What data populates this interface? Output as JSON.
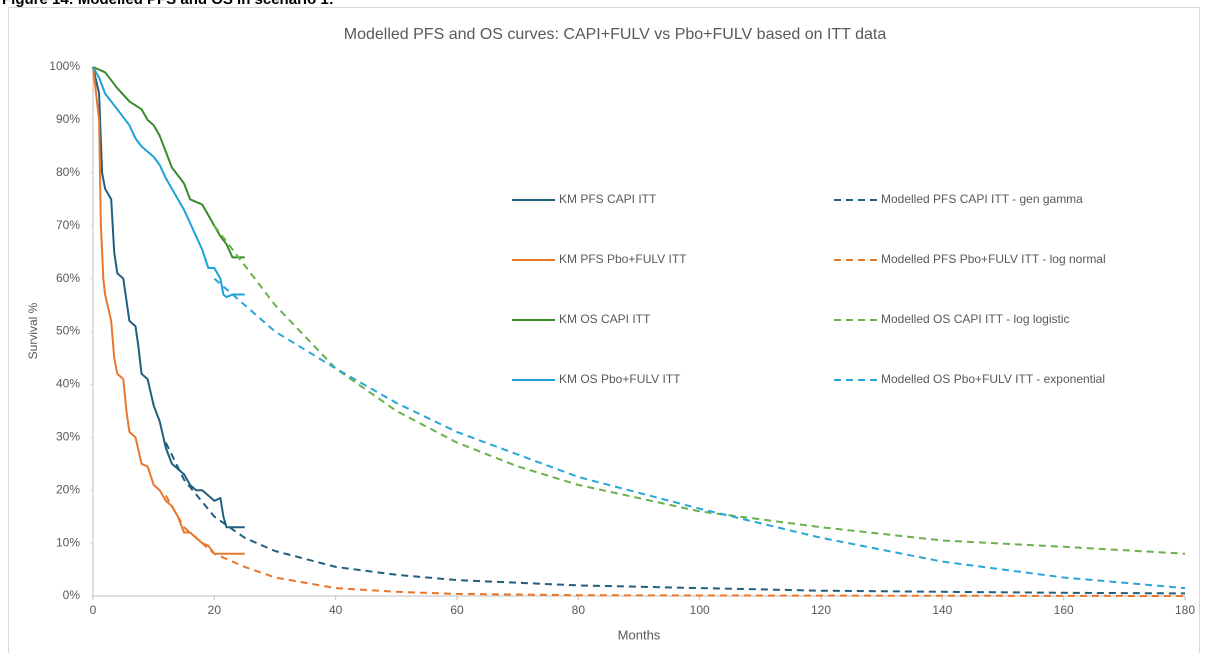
{
  "caption": "Figure 14: Modelled PFS and OS in scenario 1:",
  "chart_data": {
    "type": "line",
    "title": "Modelled PFS and OS curves: CAPI+FULV vs Pbo+FULV based on ITT data",
    "x_label": "Months",
    "y_label": "Survival %",
    "xlim": [
      0,
      180
    ],
    "xticks": [
      0,
      20,
      40,
      60,
      80,
      100,
      120,
      140,
      160,
      180
    ],
    "ylim": [
      0,
      100
    ],
    "yticks": [
      {
        "value": 0,
        "label": "0%"
      },
      {
        "value": 10,
        "label": "10%"
      },
      {
        "value": 20,
        "label": "20%"
      },
      {
        "value": 30,
        "label": "30%"
      },
      {
        "value": 40,
        "label": "40%"
      },
      {
        "value": 50,
        "label": "50%"
      },
      {
        "value": 60,
        "label": "60%"
      },
      {
        "value": 70,
        "label": "70%"
      },
      {
        "value": 80,
        "label": "80%"
      },
      {
        "value": 90,
        "label": "90%"
      },
      {
        "value": 100,
        "label": "100%"
      }
    ],
    "grid": false,
    "legend": "center-right",
    "series": [
      {
        "name": "KM PFS CAPI ITT",
        "color": "#215f7e",
        "line_style": "solid",
        "x": [
          0,
          1,
          1.5,
          2,
          3,
          3.5,
          4,
          5,
          6,
          7,
          7.5,
          8,
          9,
          10,
          11,
          12,
          13,
          14,
          15,
          16,
          17,
          18,
          19,
          20,
          21,
          21.5,
          22,
          23,
          25
        ],
        "values": [
          100,
          95,
          80,
          77,
          75,
          65,
          61,
          60,
          52,
          51,
          47,
          42,
          41,
          36,
          33,
          28,
          25,
          24,
          23,
          21,
          20,
          20,
          19,
          18,
          18.5,
          15,
          13,
          13,
          13
        ]
      },
      {
        "name": "Modelled PFS CAPI ITT - gen gamma",
        "color": "#215f7e",
        "line_style": "dashed",
        "x": [
          12,
          15,
          20,
          25,
          30,
          40,
          50,
          60,
          80,
          100,
          120,
          140,
          160,
          180
        ],
        "values": [
          29,
          22,
          15,
          11,
          8.5,
          5.5,
          4,
          3,
          2,
          1.5,
          1,
          0.8,
          0.6,
          0.5
        ]
      },
      {
        "name": "KM PFS Pbo+FULV ITT",
        "color": "#e8772e",
        "line_style": "solid",
        "x": [
          0,
          1,
          1.3,
          1.7,
          2,
          3,
          3.5,
          4,
          5,
          5.5,
          6,
          7,
          8,
          9,
          10,
          11,
          12,
          13,
          14,
          15,
          16,
          17,
          18,
          19,
          20,
          21,
          25
        ],
        "values": [
          100,
          90,
          70,
          60,
          57,
          52,
          45,
          42,
          41,
          35,
          31,
          30,
          25,
          24.5,
          21,
          20,
          18,
          17,
          15,
          12,
          12,
          11,
          10,
          9.5,
          8,
          8,
          8
        ]
      },
      {
        "name": "Modelled PFS Pbo+FULV ITT - log normal",
        "color": "#e8772e",
        "line_style": "dashed",
        "x": [
          12,
          15,
          20,
          25,
          30,
          40,
          50,
          60,
          80,
          100,
          180
        ],
        "values": [
          19,
          13,
          8,
          5.5,
          3.5,
          1.5,
          0.8,
          0.4,
          0.15,
          0.1,
          0
        ]
      },
      {
        "name": "KM OS CAPI ITT",
        "color": "#3a8a2b",
        "line_style": "solid",
        "x": [
          0,
          2,
          4,
          6,
          8,
          9,
          10,
          11,
          12,
          13,
          14,
          15,
          16,
          17,
          18,
          19,
          20,
          21,
          22,
          23,
          25
        ],
        "values": [
          100,
          99,
          96,
          93.5,
          92,
          90,
          89,
          87,
          84,
          81,
          79.5,
          78,
          75,
          74.5,
          74,
          72,
          70,
          68,
          66.5,
          64,
          64
        ]
      },
      {
        "name": "Modelled OS CAPI ITT - log logistic",
        "color": "#6ab04c",
        "line_style": "dashed",
        "x": [
          20,
          22,
          25,
          30,
          40,
          50,
          60,
          70,
          80,
          100,
          120,
          140,
          160,
          180
        ],
        "values": [
          70,
          67,
          62.5,
          55,
          43,
          35,
          29,
          24.5,
          21,
          16,
          13,
          10.5,
          9.3,
          8
        ]
      },
      {
        "name": "KM OS Pbo+FULV ITT",
        "color": "#1ba3d6",
        "line_style": "solid",
        "x": [
          0,
          1,
          2,
          4,
          6,
          7,
          8,
          10,
          11,
          12,
          13,
          14,
          15,
          16,
          17,
          18,
          19,
          20,
          21,
          21.5,
          22,
          23,
          25
        ],
        "values": [
          100,
          98,
          95,
          92,
          89,
          86.5,
          85,
          83,
          81.5,
          79,
          77,
          75,
          73,
          70.5,
          68,
          65.5,
          62,
          62,
          60,
          57,
          56.5,
          57,
          57
        ]
      },
      {
        "name": "Modelled OS Pbo+FULV ITT - exponential",
        "color": "#2aa5d6",
        "line_style": "dashed",
        "x": [
          20,
          25,
          30,
          40,
          50,
          60,
          80,
          100,
          120,
          140,
          160,
          180
        ],
        "values": [
          60,
          55,
          50,
          43,
          36.5,
          31,
          22.5,
          16.5,
          11,
          6.5,
          3.5,
          1.5
        ]
      }
    ]
  }
}
